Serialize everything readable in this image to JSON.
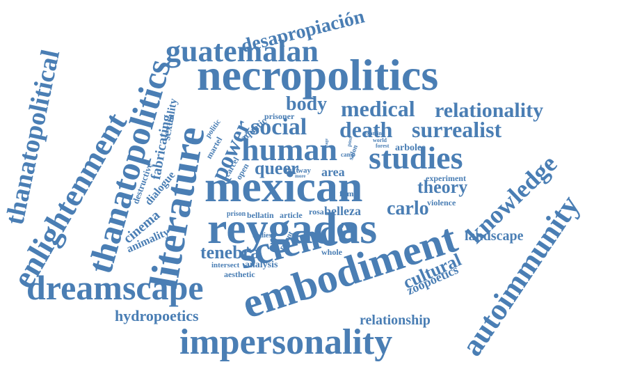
{
  "colors": {
    "text": "#4a7eb4",
    "background": "#ffffff"
  },
  "words": [
    "necropolitics",
    "mexican",
    "reygadas",
    "science",
    "embodiment",
    "impersonality",
    "dreamscape",
    "literature",
    "thanatopolitics",
    "enlightenment",
    "thanatopolitical",
    "autoimmunity",
    "guatemalan",
    "human",
    "studies",
    "knowledge",
    "social",
    "medical",
    "relationality",
    "death",
    "surrealist",
    "desapropiación",
    "power",
    "body",
    "queer",
    "theory",
    "carlo",
    "tenebra",
    "cultural",
    "fabricating",
    "hydropoetics",
    "relationship",
    "landscape",
    "zoopoetics",
    "cinema",
    "animality",
    "sexuality",
    "dialogue",
    "area",
    "belleza",
    "bellatin",
    "rosa",
    "article",
    "analysis",
    "aesthetic",
    "intersect",
    "destructive",
    "aquatic",
    "prisoner",
    "martel",
    "politic",
    "carcel",
    "open",
    "text",
    "way",
    "experiment",
    "arboles",
    "film",
    "violence",
    "prison",
    "bodies",
    "recent",
    "whole",
    "salon",
    "camp",
    "forest",
    "world",
    "examine",
    "post",
    "order",
    "more",
    "stage"
  ]
}
